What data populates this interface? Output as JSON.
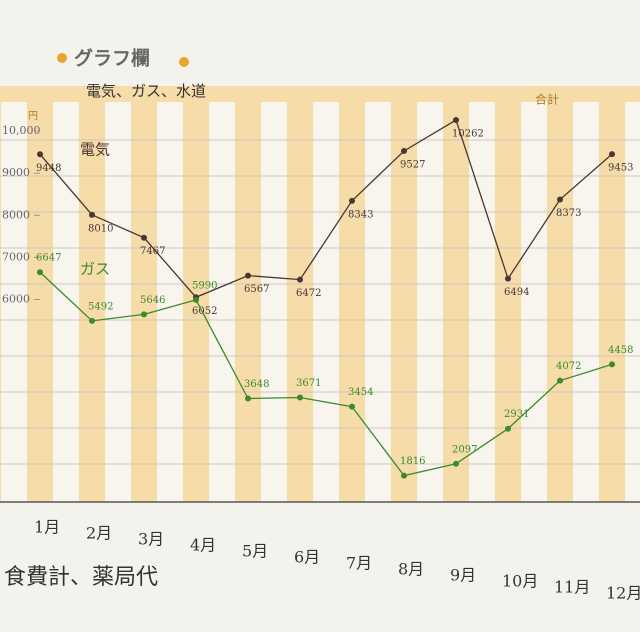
{
  "chart_data": {
    "type": "line",
    "title": "グラフ欄",
    "subtitle": "電気、ガス、水道",
    "total_label": "合計",
    "unit": "円",
    "footer": "食費計、薬局代",
    "categories": [
      "1月",
      "2月",
      "3月",
      "4月",
      "5月",
      "6月",
      "7月",
      "8月",
      "9月",
      "10月",
      "11月",
      "12月"
    ],
    "series": [
      {
        "name": "電気",
        "color": "#4a3636",
        "values": [
          9448,
          8010,
          7467,
          6052,
          6567,
          6472,
          8343,
          9527,
          10262,
          6494,
          8373,
          9453
        ]
      },
      {
        "name": "ガス",
        "color": "#3d8a2c",
        "values": [
          6647,
          5492,
          5646,
          5990,
          3648,
          3671,
          3454,
          1816,
          2097,
          2931,
          4072,
          4458
        ]
      }
    ],
    "ylim": [
      1000,
      10500
    ],
    "yticks": [
      {
        "value": 10000,
        "label": "10,000"
      },
      9000,
      8000,
      7000,
      6000
    ]
  }
}
